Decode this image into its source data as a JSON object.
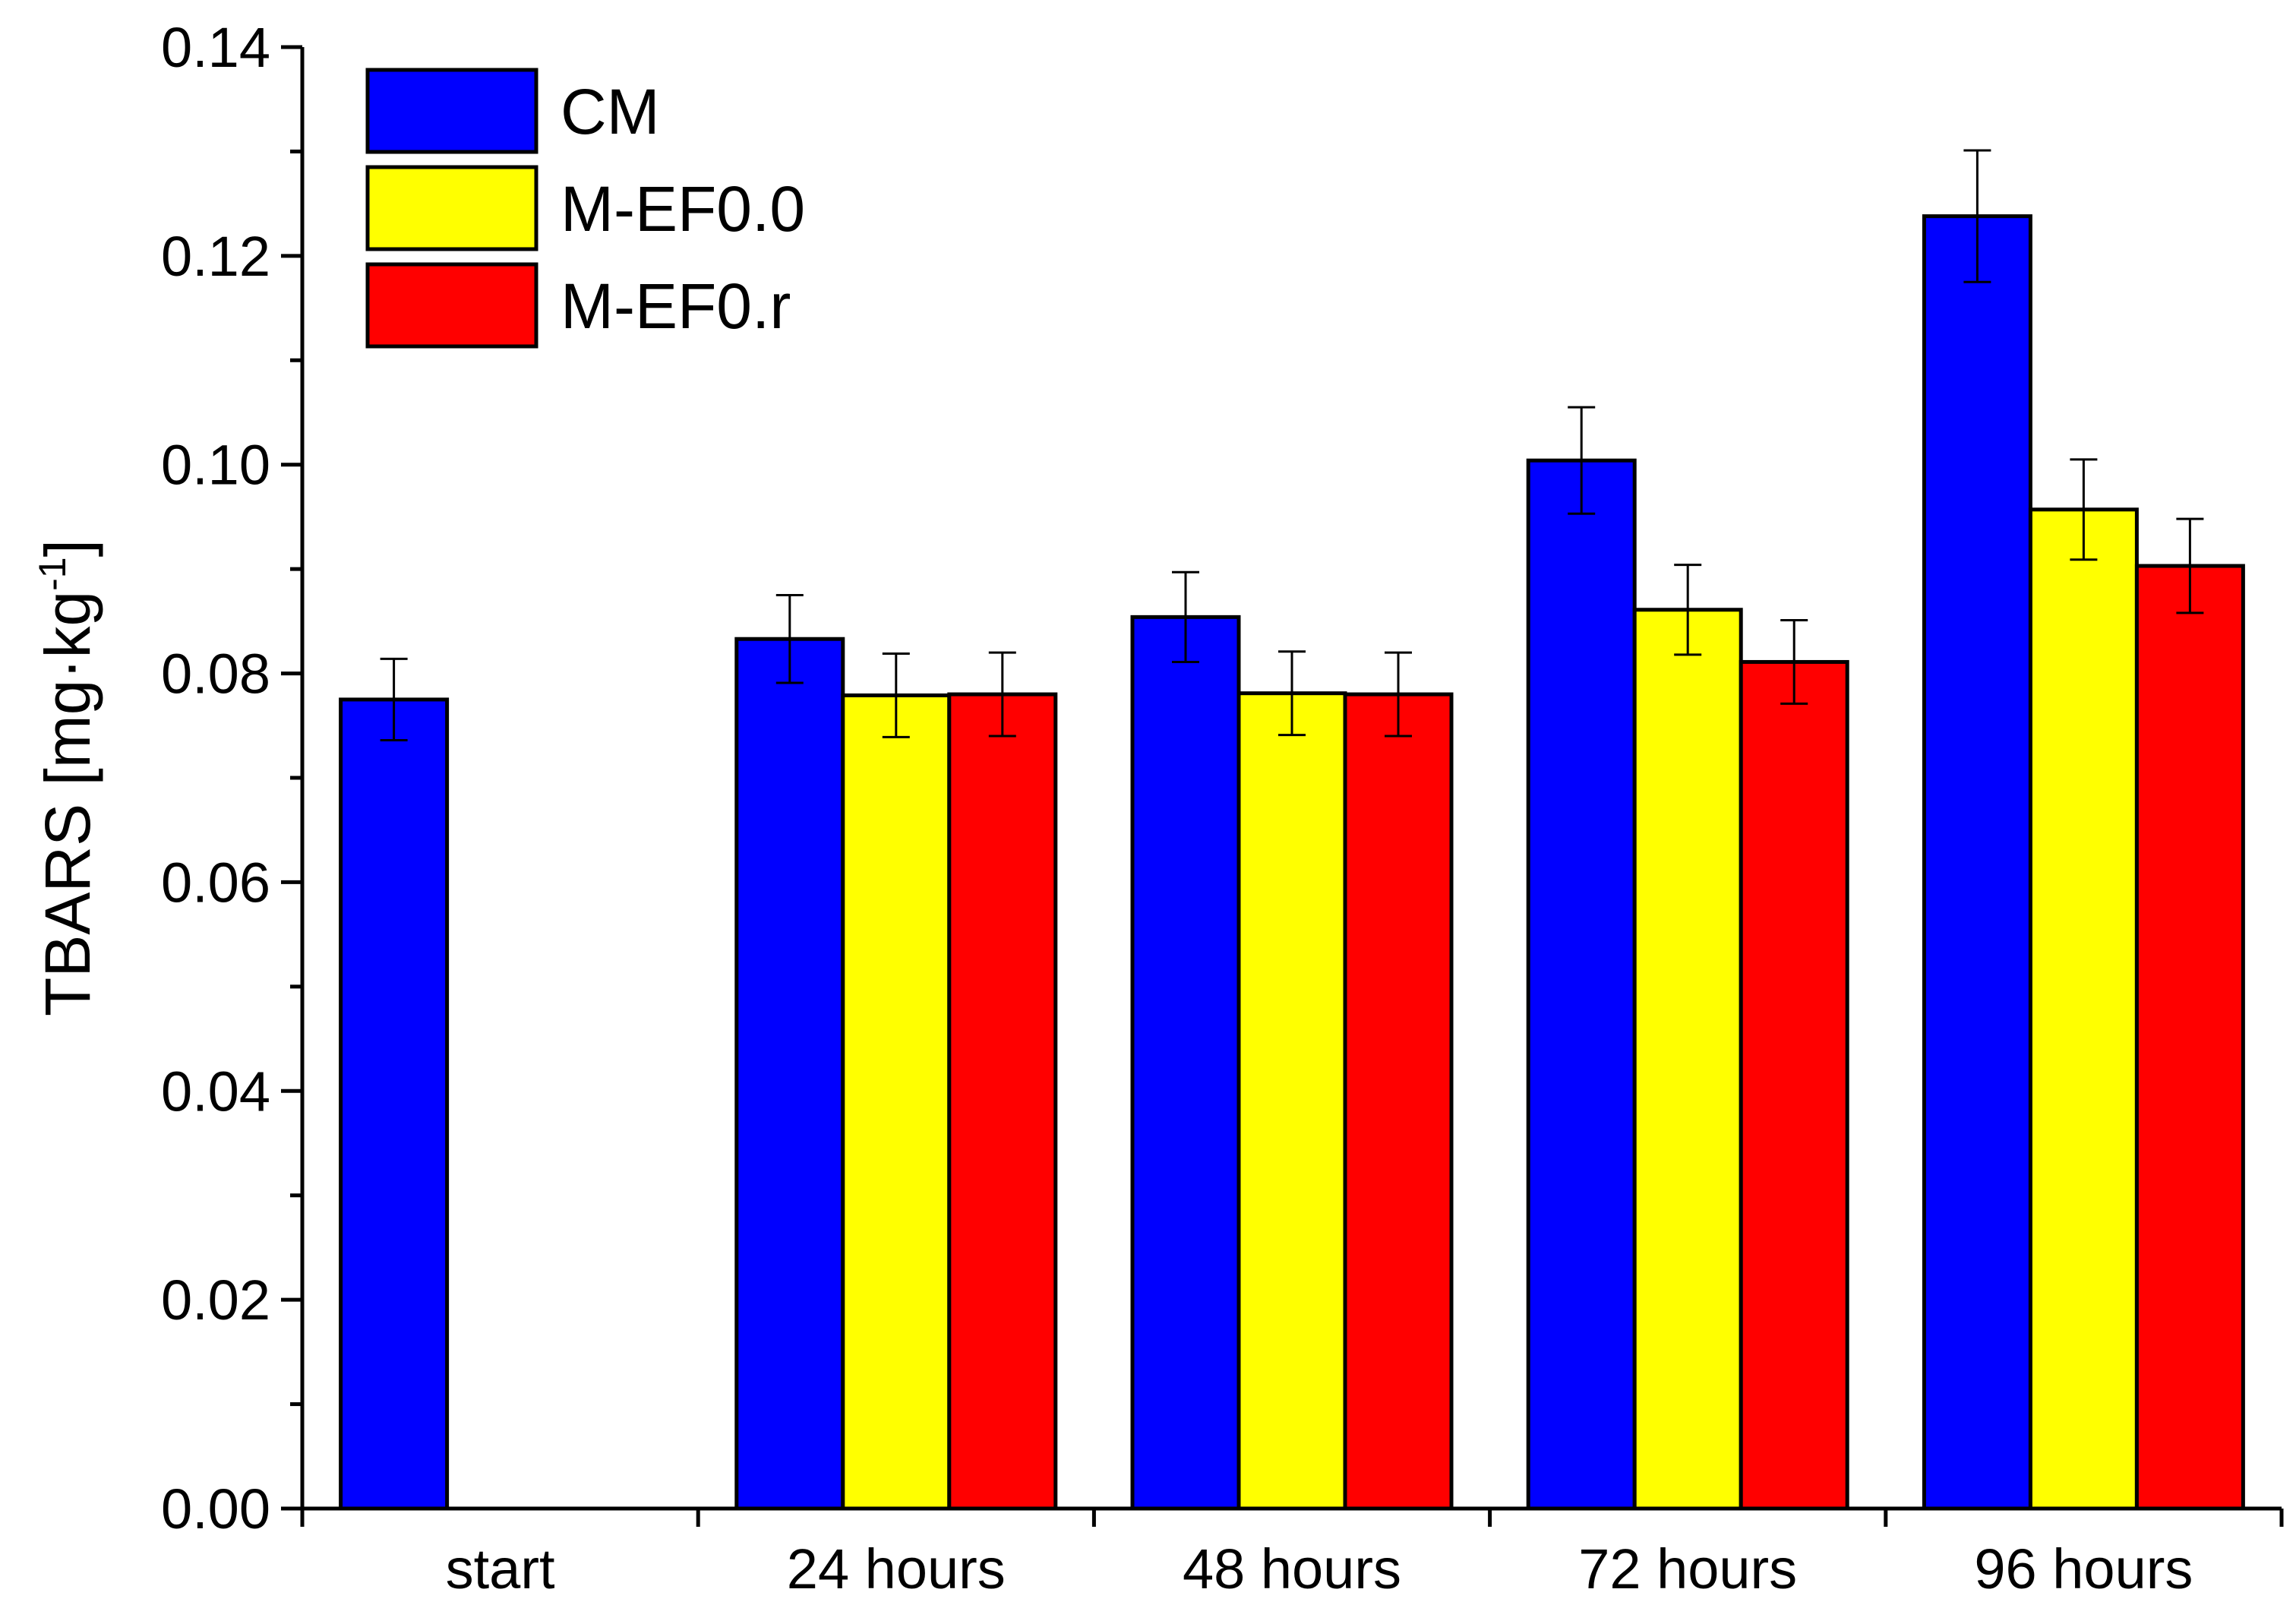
{
  "chart_data": {
    "type": "bar",
    "title": "",
    "xlabel": "",
    "ylabel": "TBARS [mg·kg",
    "ylabel_sup": "-1",
    "ylabel_close": "]",
    "ylim": [
      0,
      0.14
    ],
    "yticks": [
      "0.00",
      "0.02",
      "0.04",
      "0.06",
      "0.08",
      "0.10",
      "0.12",
      "0.14"
    ],
    "categories": [
      "start",
      "24 hours",
      "48 hours",
      "72 hours",
      "96 hours"
    ],
    "legend_position": "top-left",
    "series": [
      {
        "name": "CM",
        "color": "#0000ff",
        "values": [
          0.0775,
          0.0833,
          0.0854,
          0.1004,
          0.1238
        ],
        "errors": [
          0.0039,
          0.0042,
          0.0043,
          0.0051,
          0.0063
        ]
      },
      {
        "name": "M-EF0.0",
        "color": "#ffff00",
        "values": [
          null,
          0.0779,
          0.0781,
          0.0861,
          0.0957
        ],
        "errors": [
          null,
          0.004,
          0.004,
          0.0043,
          0.0048
        ]
      },
      {
        "name": "M-EF0.r",
        "color": "#ff0000",
        "values": [
          null,
          0.078,
          0.078,
          0.0811,
          0.0903
        ],
        "errors": [
          null,
          0.004,
          0.004,
          0.004,
          0.0045
        ]
      }
    ]
  }
}
